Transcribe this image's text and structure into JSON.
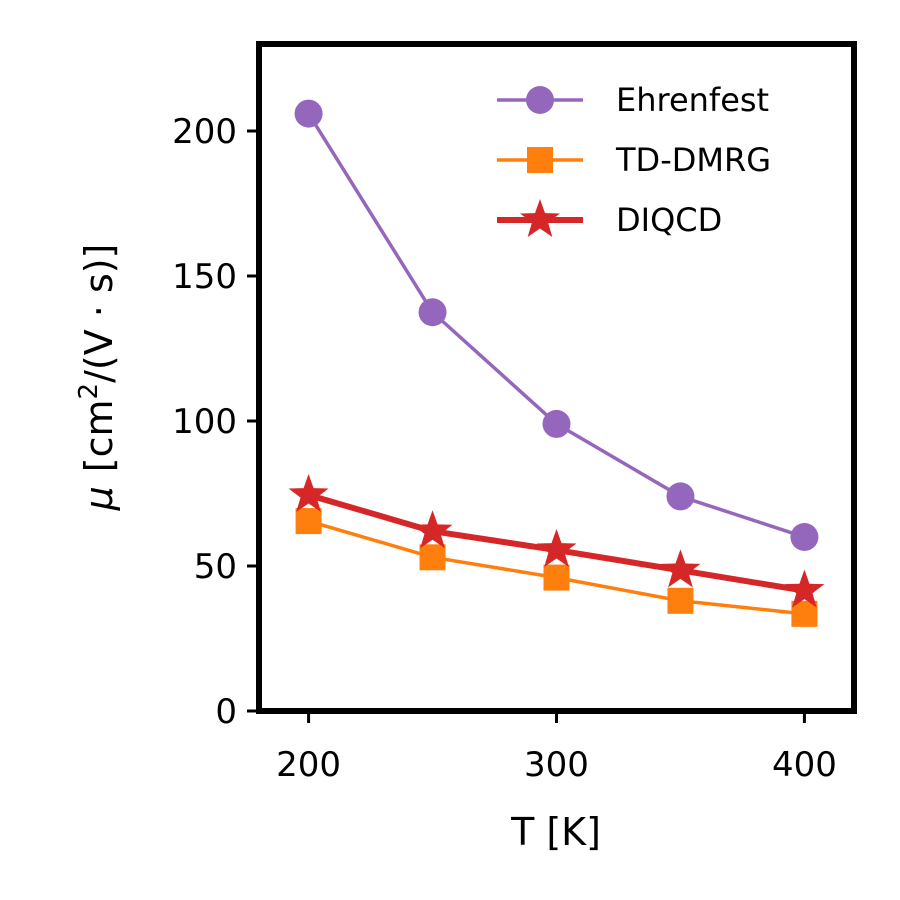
{
  "chart_data": {
    "type": "line",
    "xlabel": "T [K]",
    "ylabel": {
      "mu": "μ",
      "prefix": "[cm",
      "sup": "2",
      "suffix": "/(V · s)]"
    },
    "xlim": [
      180,
      420
    ],
    "ylim": [
      0,
      230
    ],
    "xticks": [
      200,
      300,
      400
    ],
    "yticks": [
      0,
      50,
      100,
      150,
      200
    ],
    "x": [
      200,
      250,
      300,
      350,
      400
    ],
    "legend_position": "top-right",
    "series": [
      {
        "name": "Ehrenfest",
        "color": "#9467bd",
        "marker": "circle",
        "values": [
          206,
          137.5,
          99,
          74,
          60
        ]
      },
      {
        "name": "TD-DMRG",
        "color": "#ff7f0e",
        "marker": "square",
        "values": [
          65.5,
          53,
          46,
          38,
          33.5
        ]
      },
      {
        "name": "DIQCD",
        "color": "#d62728",
        "marker": "star",
        "values": [
          74.5,
          62,
          55.5,
          48.5,
          41.5
        ]
      }
    ]
  }
}
